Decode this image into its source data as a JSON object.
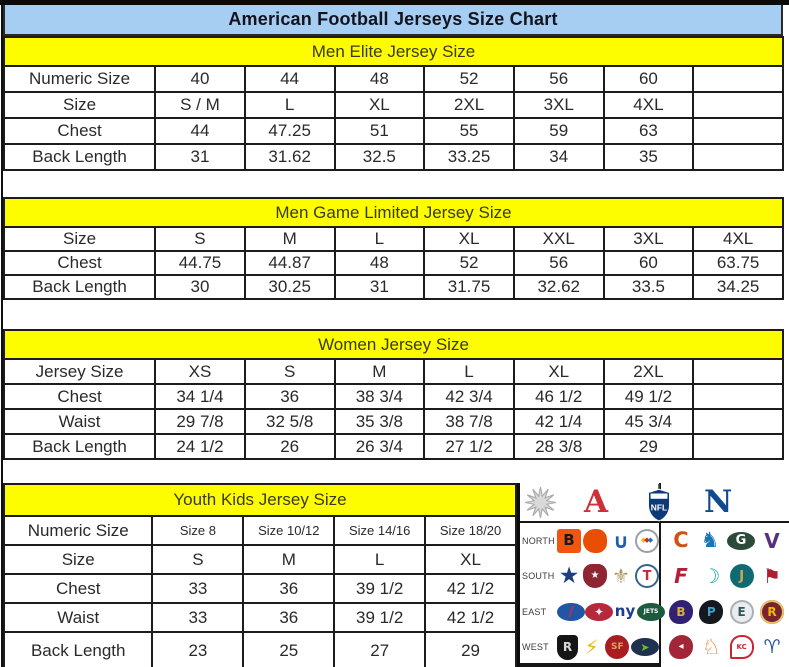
{
  "title": "American Football Jerseys Size Chart",
  "colors": {
    "title_bg": "#a6cdf2",
    "band_yellow": "#fdfd00",
    "border": "#1c1c1c",
    "afc_red": "#cf2f38",
    "nfc_blue": "#124a90"
  },
  "tables": [
    {
      "id": "men-elite",
      "header": "Men Elite Jersey Size",
      "columns": 7,
      "rows": [
        {
          "label": "Numeric Size",
          "values": [
            "40",
            "44",
            "48",
            "52",
            "56",
            "60",
            ""
          ]
        },
        {
          "label": "Size",
          "values": [
            "S / M",
            "L",
            "XL",
            "2XL",
            "3XL",
            "4XL",
            ""
          ]
        },
        {
          "label": "Chest",
          "values": [
            "44",
            "47.25",
            "51",
            "55",
            "59",
            "63",
            ""
          ]
        },
        {
          "label": "Back Length",
          "values": [
            "31",
            "31.62",
            "32.5",
            "33.25",
            "34",
            "35",
            ""
          ]
        }
      ]
    },
    {
      "id": "men-game-limited",
      "header": "Men Game Limited Jersey Size",
      "columns": 7,
      "rows": [
        {
          "label": "Size",
          "values": [
            "S",
            "M",
            "L",
            "XL",
            "XXL",
            "3XL",
            "4XL"
          ]
        },
        {
          "label": "Chest",
          "values": [
            "44.75",
            "44.87",
            "48",
            "52",
            "56",
            "60",
            "63.75"
          ]
        },
        {
          "label": "Back Length",
          "values": [
            "30",
            "30.25",
            "31",
            "31.75",
            "32.62",
            "33.5",
            "34.25"
          ]
        }
      ]
    },
    {
      "id": "women",
      "header": "Women Jersey Size",
      "columns": 7,
      "rows": [
        {
          "label": "Jersey Size",
          "values": [
            "XS",
            "S",
            "M",
            "L",
            "XL",
            "2XL",
            ""
          ]
        },
        {
          "label": "Chest",
          "values": [
            "34 1/4",
            "36",
            "38 3/4",
            "42 3/4",
            "46 1/2",
            "49 1/2",
            ""
          ]
        },
        {
          "label": "Waist",
          "values": [
            "29 7/8",
            "32 5/8",
            "35 3/8",
            "38 7/8",
            "42 1/4",
            "45 3/4",
            ""
          ]
        },
        {
          "label": "Back Length",
          "values": [
            "24 1/2",
            "26",
            "26 3/4",
            "27 1/2",
            "28 3/8",
            "29",
            ""
          ]
        }
      ]
    },
    {
      "id": "youth",
      "header": "Youth Kids Jersey Size",
      "columns": 4,
      "rows": [
        {
          "label": "Numeric Size",
          "values": [
            "Size 8",
            "Size 10/12",
            "Size 14/16",
            "Size 18/20"
          ],
          "small": true
        },
        {
          "label": "Size",
          "values": [
            "S",
            "M",
            "L",
            "XL"
          ]
        },
        {
          "label": "Chest",
          "values": [
            "33",
            "36",
            "39 1/2",
            "42 1/2"
          ]
        },
        {
          "label": "Waist",
          "values": [
            "33",
            "36",
            "39 1/2",
            "42 1/2"
          ]
        },
        {
          "label": "Back Length",
          "values": [
            "23",
            "25",
            "27",
            "29"
          ]
        }
      ]
    }
  ],
  "nfl": {
    "conference_left": {
      "label": "A",
      "color": "#cf2f38"
    },
    "conference_right": {
      "label": "N",
      "color": "#124a90"
    },
    "shield_text": "NFL",
    "divisions": [
      {
        "label": "NORTH",
        "afc": [
          {
            "team": "bengals",
            "glyph": "B",
            "fg": "#1a1a1a",
            "bg": "#f0560f",
            "shape": "square",
            "size": 15
          },
          {
            "team": "browns",
            "glyph": "",
            "fg": "#7a3c00",
            "bg": "#e84f05",
            "shape": "helmet"
          },
          {
            "team": "colts",
            "glyph": "∪",
            "fg": "#1d5fae",
            "bg": "",
            "shape": "plain",
            "size": 20
          },
          {
            "team": "steelers",
            "glyph": [
              {
                "t": "◆",
                "c": "#f2b705"
              },
              {
                "t": "◆",
                "c": "#cf2233"
              },
              {
                "t": "◆",
                "c": "#2a6fb5"
              }
            ],
            "fg": "#333333",
            "bg": "#ffffff",
            "shape": "circle",
            "border": "#9aa0a6"
          }
        ],
        "nfc": [
          {
            "team": "bears",
            "glyph": "C",
            "fg": "#cd5214",
            "bg": "",
            "shape": "plain",
            "size": 21
          },
          {
            "team": "lions",
            "glyph": "♞",
            "fg": "#1c74b4",
            "bg": "",
            "shape": "plain",
            "size": 21
          },
          {
            "team": "packers",
            "glyph": "G",
            "fg": "#ffffff",
            "bg": "#2c4a3a",
            "shape": "oval",
            "size": 13
          },
          {
            "team": "vikings",
            "glyph": "V",
            "fg": "#59307f",
            "bg": "",
            "shape": "plain",
            "size": 20
          }
        ]
      },
      {
        "label": "SOUTH",
        "afc": [
          {
            "team": "cowboys",
            "glyph": "★",
            "fg": "#1d3e7d",
            "bg": "",
            "shape": "plain",
            "size": 23
          },
          {
            "team": "texans",
            "glyph": "★",
            "fg": "#ffffff",
            "bg": "#8f2433",
            "shape": "bull",
            "size": 10
          },
          {
            "team": "saints",
            "glyph": "⚜",
            "fg": "#ad9a62",
            "bg": "",
            "shape": "plain",
            "size": 20
          },
          {
            "team": "titans",
            "glyph": "T",
            "fg": "#c8283c",
            "bg": "#ffffff",
            "shape": "circle",
            "border": "#36648f",
            "size": 13
          }
        ],
        "nfc": [
          {
            "team": "falcons",
            "glyph": "F",
            "fg": "#b31f38",
            "bg": "",
            "shape": "plain-italic",
            "size": 20
          },
          {
            "team": "dolphins",
            "glyph": "☽",
            "fg": "#22a6a0",
            "bg": "",
            "shape": "plain",
            "size": 20
          },
          {
            "team": "jaguars",
            "glyph": "J",
            "fg": "#d3a84a",
            "bg": "#0f6a74",
            "shape": "circle",
            "size": 13
          },
          {
            "team": "buccaneers",
            "glyph": "⚑",
            "fg": "#ad1f2d",
            "bg": "",
            "shape": "plain",
            "size": 20
          }
        ]
      },
      {
        "label": "EAST",
        "afc": [
          {
            "team": "bills",
            "glyph": "∕",
            "fg": "#d32939",
            "bg": "#2155a5",
            "shape": "oval",
            "size": 14
          },
          {
            "team": "patriots",
            "glyph": "✦",
            "fg": "#e8eef5",
            "bg": "#b5293b",
            "shape": "oval",
            "size": 12
          },
          {
            "team": "giants",
            "glyph": "ny",
            "fg": "#1b3d8f",
            "bg": "",
            "shape": "plain",
            "size": 15
          },
          {
            "team": "jets",
            "glyph": "JETS",
            "fg": "#ffffff",
            "bg": "#1d5b40",
            "shape": "oval",
            "size": 6
          }
        ],
        "nfc": [
          {
            "team": "ravens",
            "glyph": "B",
            "fg": "#d4af37",
            "bg": "#322075",
            "shape": "bird",
            "size": 12
          },
          {
            "team": "panthers",
            "glyph": "P",
            "fg": "#3aa0cc",
            "bg": "#15181d",
            "shape": "bird",
            "size": 12
          },
          {
            "team": "eagles",
            "glyph": "E",
            "fg": "#33565c",
            "bg": "#e9edef",
            "shape": "circle",
            "border": "#a8b0b5",
            "size": 12
          },
          {
            "team": "redskins",
            "glyph": "R",
            "fg": "#f2b705",
            "bg": "#772430",
            "shape": "circle",
            "border": "#e8c36a",
            "size": 12
          }
        ]
      },
      {
        "label": "WEST",
        "afc": [
          {
            "team": "raiders",
            "glyph": "R",
            "fg": "#d6d9db",
            "bg": "#151515",
            "shape": "shield",
            "size": 12
          },
          {
            "team": "chargers",
            "glyph": "⚡",
            "fg": "#f2b705",
            "bg": "",
            "shape": "plain",
            "size": 20
          },
          {
            "team": "49ers",
            "glyph": "SF",
            "fg": "#cda964",
            "bg": "#a81c22",
            "shape": "circle",
            "size": 9
          },
          {
            "team": "seahawks",
            "glyph": "➤",
            "fg": "#69be28",
            "bg": "#20304f",
            "shape": "oval",
            "size": 11
          }
        ],
        "nfc": [
          {
            "team": "cardinals",
            "glyph": "◂",
            "fg": "#ffffff",
            "bg": "#a32638",
            "shape": "bird",
            "size": 10
          },
          {
            "team": "broncos",
            "glyph": "♘",
            "fg": "#e8741e",
            "bg": "",
            "shape": "plain",
            "size": 21
          },
          {
            "team": "chiefs",
            "glyph": "KC",
            "fg": "#cf2233",
            "bg": "#ffffff",
            "shape": "arrow",
            "border": "#cf2233",
            "size": 7
          },
          {
            "team": "rams",
            "glyph": "♈",
            "fg": "#2a53a0",
            "bg": "",
            "shape": "plain",
            "size": 19
          }
        ]
      }
    ]
  }
}
